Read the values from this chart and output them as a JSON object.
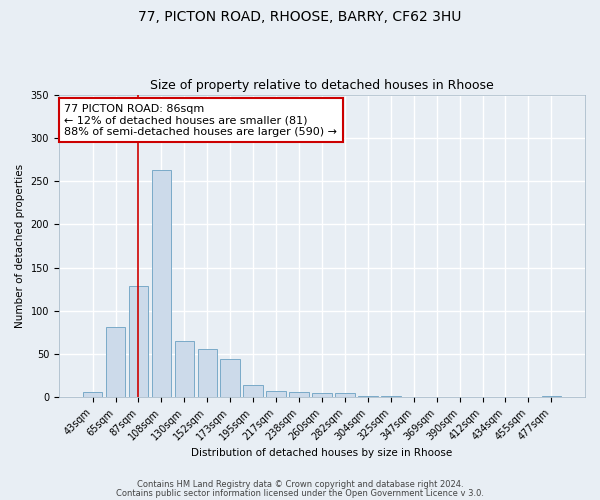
{
  "title1": "77, PICTON ROAD, RHOOSE, BARRY, CF62 3HU",
  "title2": "Size of property relative to detached houses in Rhoose",
  "xlabel": "Distribution of detached houses by size in Rhoose",
  "ylabel": "Number of detached properties",
  "categories": [
    "43sqm",
    "65sqm",
    "87sqm",
    "108sqm",
    "130sqm",
    "152sqm",
    "173sqm",
    "195sqm",
    "217sqm",
    "238sqm",
    "260sqm",
    "282sqm",
    "304sqm",
    "325sqm",
    "347sqm",
    "369sqm",
    "390sqm",
    "412sqm",
    "434sqm",
    "455sqm",
    "477sqm"
  ],
  "values": [
    6,
    81,
    129,
    263,
    65,
    56,
    44,
    14,
    7,
    6,
    5,
    5,
    2,
    1,
    0,
    0,
    0,
    0,
    0,
    0,
    2
  ],
  "bar_color": "#ccdaea",
  "bar_edge_color": "#7aaac8",
  "bar_edge_width": 0.7,
  "vline_x_index": 2,
  "vline_color": "#cc0000",
  "annotation_text": "77 PICTON ROAD: 86sqm\n← 12% of detached houses are smaller (81)\n88% of semi-detached houses are larger (590) →",
  "annotation_box_color": "#ffffff",
  "annotation_box_edge_color": "#cc0000",
  "ylim": [
    0,
    350
  ],
  "yticks": [
    0,
    50,
    100,
    150,
    200,
    250,
    300,
    350
  ],
  "background_color": "#e8eef4",
  "plot_background_color": "#e8eef4",
  "grid_color": "#ffffff",
  "footer1": "Contains HM Land Registry data © Crown copyright and database right 2024.",
  "footer2": "Contains public sector information licensed under the Open Government Licence v 3.0.",
  "title1_fontsize": 10,
  "title2_fontsize": 9,
  "axis_label_fontsize": 7.5,
  "tick_fontsize": 7,
  "annotation_fontsize": 8,
  "footer_fontsize": 6
}
